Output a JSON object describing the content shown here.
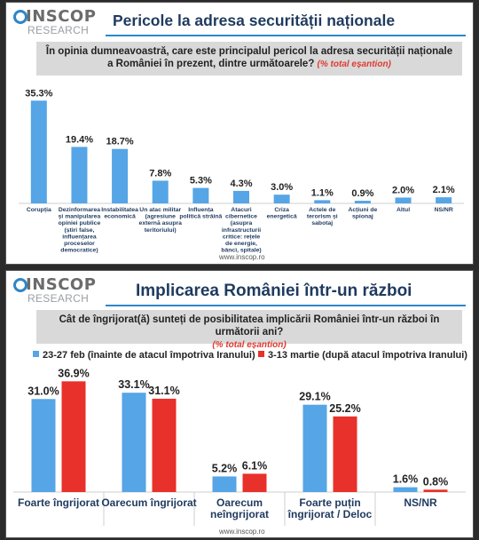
{
  "panel1": {
    "logo": {
      "word": "INSCOP",
      "sub": "RESEARCH"
    },
    "title": "Pericole la adresa securității naționale",
    "question": "În opinia dumneavoastră, care este principalul pericol la adresa securității naționale a României în prezent, dintre următoarele?",
    "question_note": "(% total eșantion)",
    "source": "www.inscop.ro"
  },
  "panel2": {
    "logo": {
      "word": "INSCOP",
      "sub": "RESEARCH"
    },
    "title": "Implicarea României într-un război",
    "question": "Cât de îngrijorat(ă) sunteți de posibilitatea implicării României într-un război în următorii ani?",
    "question_note": "(% total eșantion)",
    "source": "www.inscop.ro"
  },
  "colors": {
    "blue": "#56a5e6",
    "red": "#e8312a",
    "accent": "#2e86c8"
  },
  "chart_data": [
    {
      "type": "bar",
      "title": "Pericole la adresa securității naționale",
      "categories": [
        [
          "Corupția"
        ],
        [
          "Dezinformarea",
          "și manipularea",
          "opiniei publice",
          "(știri false,",
          "influențarea",
          "proceselor",
          "democratice)"
        ],
        [
          "Instabilitatea",
          "economică"
        ],
        [
          "Un atac militar",
          "(agresiune",
          "externă asupra",
          "teritoriului)"
        ],
        [
          "Influența",
          "politică străină"
        ],
        [
          "Atacuri",
          "cibernetice",
          "(asupra",
          "infrastructurii",
          "critice: rețele",
          "de energie,",
          "bănci, spitale)"
        ],
        [
          "Criza",
          "energetică"
        ],
        [
          "Actele de",
          "terorism și",
          "sabotaj"
        ],
        [
          "Acțiuni de",
          "spionaj"
        ],
        [
          "Altul"
        ],
        [
          "NS/NR"
        ]
      ],
      "values": [
        35.3,
        19.4,
        18.7,
        7.8,
        5.3,
        4.3,
        3.0,
        1.1,
        0.9,
        2.0,
        2.1
      ],
      "value_labels": [
        "35.3%",
        "19.4%",
        "18.7%",
        "7.8%",
        "5.3%",
        "4.3%",
        "3.0%",
        "1.1%",
        "0.9%",
        "2.0%",
        "2.1%"
      ],
      "ylim": [
        0,
        36
      ]
    },
    {
      "type": "bar",
      "title": "Implicarea României într-un război",
      "categories": [
        [
          "Foarte îngrijorat"
        ],
        [
          "Oarecum îngrijorat"
        ],
        [
          "Oarecum",
          "neîngrijorat"
        ],
        [
          "Foarte puțin",
          "îngrijorat / Deloc"
        ],
        [
          "NS/NR"
        ]
      ],
      "series": [
        {
          "name": "23-27 feb (înainte de atacul împotriva Iranului)",
          "values": [
            31.0,
            33.1,
            5.2,
            29.1,
            1.6
          ],
          "value_labels": [
            "31.0%",
            "33.1%",
            "5.2%",
            "29.1%",
            "1.6%"
          ]
        },
        {
          "name": "3-13 martie (după atacul împotriva Iranului)",
          "values": [
            36.9,
            31.1,
            6.1,
            25.2,
            0.8
          ],
          "value_labels": [
            "36.9%",
            "31.1%",
            "6.1%",
            "25.2%",
            "0.8%"
          ]
        }
      ],
      "ylim": [
        0,
        37
      ]
    }
  ]
}
